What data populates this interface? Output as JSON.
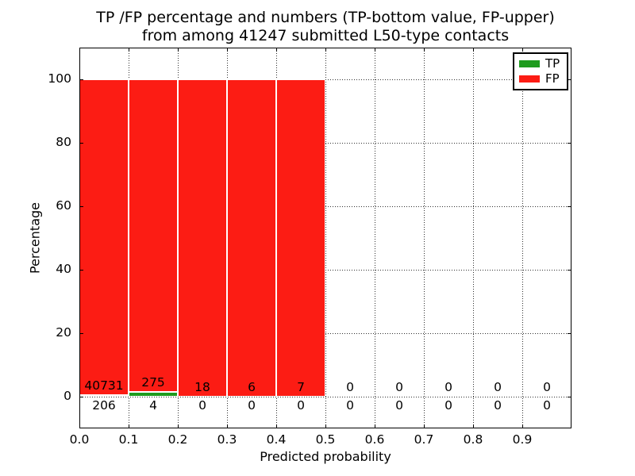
{
  "title": {
    "line1": "TP /FP percentage and numbers (TP-bottom value, FP-upper)",
    "line2": "from among 41247 submitted L50-type contacts"
  },
  "axes": {
    "xlabel": "Predicted probability",
    "ylabel": "Percentage"
  },
  "legend": {
    "items": [
      {
        "label": "TP",
        "color": "#1e9b1e"
      },
      {
        "label": "FP",
        "color": "#fc1c14"
      }
    ]
  },
  "chart_data": {
    "type": "bar",
    "subtype": "stacked-percentage-histogram",
    "title": "TP /FP percentage and numbers (TP-bottom value, FP-upper) from among 41247 submitted L50-type contacts",
    "total_submitted_contacts": 41247,
    "xlabel": "Predicted probability",
    "ylabel": "Percentage",
    "xlim": [
      0.0,
      1.0
    ],
    "ylim": [
      -10,
      110
    ],
    "xticks": [
      "0.0",
      "0.1",
      "0.2",
      "0.3",
      "0.4",
      "0.5",
      "0.6",
      "0.7",
      "0.8",
      "0.9"
    ],
    "yticks": [
      0,
      20,
      40,
      60,
      80,
      100
    ],
    "bin_width": 0.1,
    "categories": [
      "0.0-0.1",
      "0.1-0.2",
      "0.2-0.3",
      "0.3-0.4",
      "0.4-0.5",
      "0.5-0.6",
      "0.6-0.7",
      "0.7-0.8",
      "0.8-0.9",
      "0.9-1.0"
    ],
    "series": [
      {
        "name": "TP",
        "color": "#1e9b1e",
        "counts": [
          206,
          4,
          0,
          0,
          0,
          0,
          0,
          0,
          0,
          0
        ],
        "percentages": [
          0.5,
          1.43,
          0,
          0,
          0,
          0,
          0,
          0,
          0,
          0
        ]
      },
      {
        "name": "FP",
        "color": "#fc1c14",
        "counts": [
          40731,
          275,
          18,
          6,
          7,
          0,
          0,
          0,
          0,
          0
        ],
        "percentages": [
          99.5,
          98.57,
          100,
          100,
          100,
          0,
          0,
          0,
          0,
          0
        ]
      }
    ],
    "grid": {
      "style": "dotted",
      "on": true
    },
    "legend_position": "upper-right",
    "bar_edge_color": "#ffffff"
  }
}
